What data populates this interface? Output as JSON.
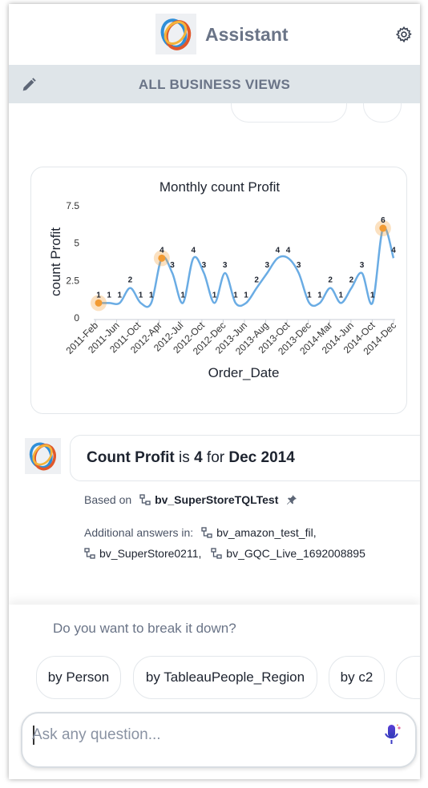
{
  "header": {
    "title": "Assistant",
    "logo_icon": "assistant-logo",
    "settings_icon": "gear-icon"
  },
  "bv_bar": {
    "label": "ALL BUSINESS VIEWS",
    "edit_icon": "pencil-icon"
  },
  "chart_data": {
    "type": "line",
    "title": "Monthly count Profit",
    "xlabel": "Order_Date",
    "ylabel": "count Profit",
    "ylim": [
      0,
      7.5
    ],
    "yticks": [
      "0",
      "2.5",
      "5",
      "7.5"
    ],
    "xtick_labels": [
      "2011-Feb",
      "2011-Jun",
      "2011-Oct",
      "2012-Apr",
      "2012-Jul",
      "2012-Oct",
      "2012-Dec",
      "2013-Jun",
      "2013-Aug",
      "2013-Oct",
      "2013-Dec",
      "2014-Mar",
      "2014-Jun",
      "2014-Oct",
      "2014-Dec"
    ],
    "series": [
      {
        "values": [
          1,
          1,
          1,
          2,
          1,
          1,
          4,
          3,
          1,
          4,
          3,
          1,
          3,
          1,
          1,
          2,
          3,
          4,
          4,
          3,
          1,
          1,
          2,
          1,
          2,
          3,
          1,
          6,
          4
        ],
        "highlighted_indices": [
          0,
          6,
          27
        ]
      }
    ],
    "line_color": "#6aace4",
    "highlight_color": "#f29b33"
  },
  "answer": {
    "measure": "Count Profit",
    "connector1": "is",
    "value": "4",
    "connector2": "for",
    "period": "Dec 2014"
  },
  "based_on": {
    "label": "Based on",
    "business_view": "bv_SuperStoreTQLTest"
  },
  "additional": {
    "label": "Additional answers in:",
    "views": [
      "bv_amazon_test_fil,",
      "bv_SuperStore0211,",
      "bv_GQC_Live_1692008895"
    ]
  },
  "breakdown": {
    "question": "Do you want to break it down?",
    "chips": [
      "by Person",
      "by TableauPeople_Region",
      "by c2"
    ]
  },
  "ask": {
    "placeholder": "Ask any question..."
  }
}
